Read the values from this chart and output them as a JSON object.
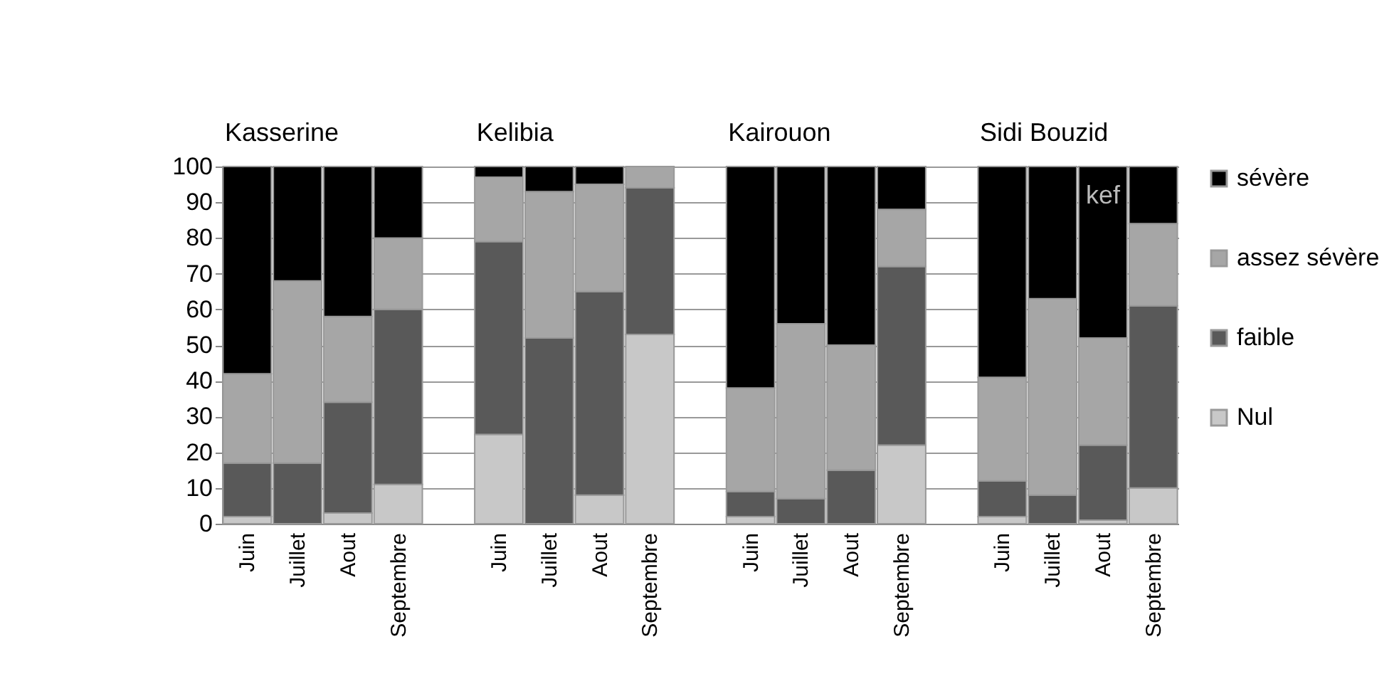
{
  "chart_data": {
    "type": "bar",
    "stacked": true,
    "categories": [
      "Juin",
      "Juillet",
      "Aout",
      "Septembre",
      null,
      "Juin",
      "Juillet",
      "Aout",
      "Septembre",
      null,
      "Juin",
      "Juillet",
      "Aout",
      "Septembre",
      null,
      "Juin",
      "Juillet",
      "Aout",
      "Septembre"
    ],
    "series": [
      {
        "name": "Nul",
        "color": "#c8c8c8",
        "values": [
          2,
          0,
          3,
          11,
          null,
          25,
          0,
          8,
          53,
          null,
          2,
          0,
          0,
          22,
          null,
          2,
          0,
          1,
          10
        ]
      },
      {
        "name": "faible",
        "color": "#595959",
        "values": [
          15,
          17,
          31,
          49,
          null,
          54,
          52,
          57,
          41,
          null,
          7,
          7,
          15,
          50,
          null,
          10,
          8,
          21,
          51
        ]
      },
      {
        "name": "assez sévère",
        "color": "#a6a6a6",
        "values": [
          25,
          51,
          24,
          20,
          null,
          18,
          41,
          30,
          6,
          null,
          29,
          49,
          35,
          16,
          null,
          29,
          55,
          30,
          23
        ]
      },
      {
        "name": "sévère",
        "color": "#000000",
        "values": [
          58,
          32,
          42,
          20,
          null,
          3,
          7,
          5,
          0,
          null,
          62,
          44,
          50,
          12,
          null,
          59,
          37,
          48,
          16
        ]
      }
    ],
    "ylim": [
      0,
      100
    ],
    "yticks": [
      0,
      10,
      20,
      30,
      40,
      50,
      60,
      70,
      80,
      90,
      100
    ],
    "grid": "y",
    "legend": "right",
    "annotations": [
      "Kasserine",
      "Kelibia",
      "Kairouon",
      "Sidi Bouzid",
      "kef"
    ]
  }
}
